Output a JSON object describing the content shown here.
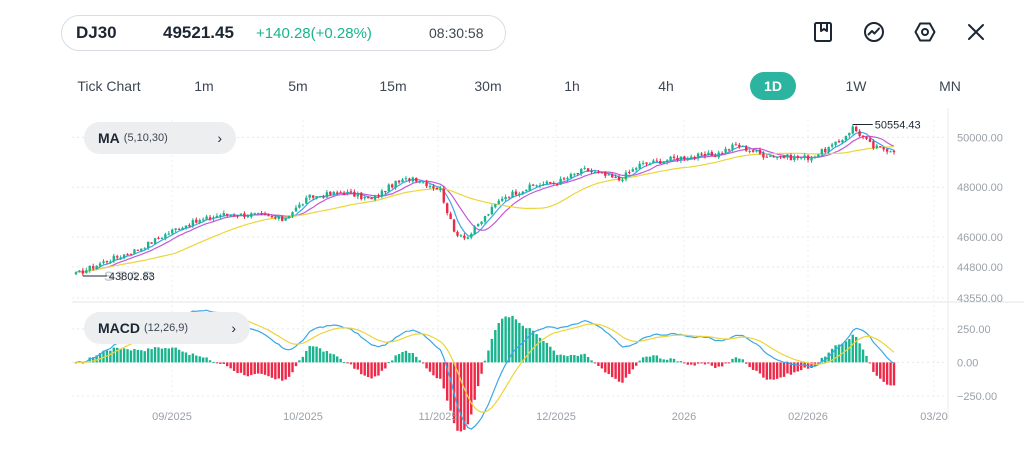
{
  "header": {
    "symbol": "DJ30",
    "price": "49521.45",
    "change": "+140.28(+0.28%)",
    "time": "08:30:58"
  },
  "toolbar": {
    "icons": [
      "bookmark-icon",
      "trend-icon",
      "settings-icon",
      "close-icon"
    ]
  },
  "tabs": [
    {
      "label": "Tick Chart"
    },
    {
      "label": "1m"
    },
    {
      "label": "5m"
    },
    {
      "label": "15m"
    },
    {
      "label": "30m"
    },
    {
      "label": "1h"
    },
    {
      "label": "4h"
    },
    {
      "label": "1D",
      "active": true
    },
    {
      "label": "1W"
    },
    {
      "label": "MN"
    }
  ],
  "indicators": {
    "ma": {
      "name": "MA",
      "params": "(5,10,30)"
    },
    "macd": {
      "name": "MACD",
      "params": "(12,26,9)"
    }
  },
  "colors": {
    "up": "#19b48e",
    "down": "#ef2848",
    "ma5": "#3aa7e8",
    "ma10": "#c45ad6",
    "ma30": "#ecd53a",
    "accent": "#2bb5a0"
  },
  "chart_data": [
    {
      "type": "candlestick",
      "price_axis": [
        "50000.00",
        "48000.00",
        "46000.00",
        "44800.00",
        "43550.00"
      ],
      "ylim": [
        43550,
        50700
      ],
      "high_label": "50554.43",
      "low_label": "43802.83",
      "x_labels": [
        "09/2025",
        "10/2025",
        "11/2025",
        "12/2025",
        "2026",
        "02/2026",
        "03/20"
      ],
      "close_anchors": [
        [
          0,
          44500
        ],
        [
          8,
          45000
        ],
        [
          18,
          45500
        ],
        [
          30,
          46400
        ],
        [
          42,
          46900
        ],
        [
          52,
          46900
        ],
        [
          60,
          46700
        ],
        [
          68,
          47600
        ],
        [
          78,
          47800
        ],
        [
          86,
          47500
        ],
        [
          92,
          48100
        ],
        [
          98,
          48400
        ],
        [
          106,
          47900
        ],
        [
          110,
          46200
        ],
        [
          114,
          46000
        ],
        [
          124,
          47600
        ],
        [
          134,
          48100
        ],
        [
          140,
          48200
        ],
        [
          148,
          48700
        ],
        [
          158,
          48300
        ],
        [
          164,
          48900
        ],
        [
          176,
          49200
        ],
        [
          186,
          49300
        ],
        [
          192,
          49700
        ],
        [
          200,
          49300
        ],
        [
          208,
          49200
        ],
        [
          214,
          49200
        ],
        [
          222,
          49800
        ],
        [
          226,
          50400
        ],
        [
          232,
          49600
        ],
        [
          238,
          49500
        ]
      ]
    },
    {
      "type": "macd",
      "axis": [
        "250.00",
        "0.00",
        "-250.00"
      ],
      "ylim": [
        -280,
        420
      ]
    }
  ]
}
